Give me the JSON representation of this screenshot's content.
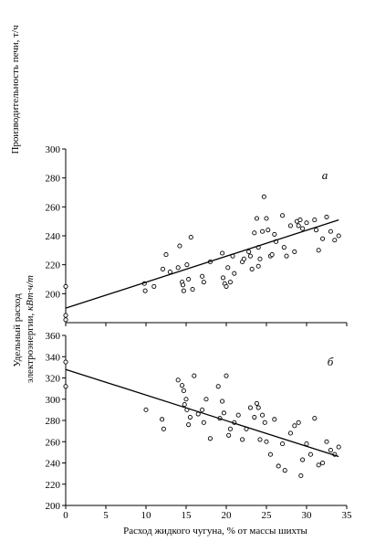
{
  "chart_data": [
    {
      "type": "scatter",
      "panel_label": "а",
      "ylabel": "Производительность печи, т/ч",
      "xlim": [
        0,
        35
      ],
      "ylim": [
        180,
        300
      ],
      "yticks": [
        200,
        220,
        240,
        260,
        280,
        300
      ],
      "trendline": {
        "x": [
          0,
          34
        ],
        "y": [
          190,
          251
        ]
      },
      "series": [
        {
          "x": [
            0,
            0,
            0,
            9.8,
            9.9,
            11,
            12.1,
            12.5,
            13,
            14,
            14.2,
            14.5,
            14.6,
            14.7,
            15.1,
            15.3,
            15.6,
            15.8,
            17,
            17.2,
            18,
            19.5,
            19.6,
            19.8,
            20,
            20.2,
            20.5,
            20.8,
            21,
            22,
            22.2,
            22.8,
            23,
            23.2,
            23.5,
            23.8,
            24,
            24,
            24.2,
            24.5,
            24.7,
            25,
            25.2,
            25.5,
            25.7,
            26,
            26.2,
            27,
            27.2,
            27.5,
            28,
            28.5,
            28.8,
            29,
            29.2,
            29.5,
            30,
            31,
            31.2,
            31.5,
            32,
            32.5,
            33,
            33.5,
            34
          ],
          "y": [
            205,
            185,
            182,
            207,
            202,
            205,
            217,
            227,
            215,
            218,
            233,
            208,
            206,
            202,
            220,
            210,
            239,
            203,
            212,
            208,
            222,
            228,
            211,
            207,
            205,
            218,
            208,
            226,
            214,
            222,
            224,
            229,
            226,
            217,
            242,
            252,
            219,
            232,
            224,
            243,
            267,
            252,
            244,
            226,
            227,
            241,
            236,
            254,
            232,
            226,
            247,
            229,
            250,
            247,
            251,
            245,
            249,
            251,
            244,
            230,
            238,
            253,
            243,
            237,
            240
          ]
        }
      ]
    },
    {
      "type": "scatter",
      "panel_label": "б",
      "ylabel": "Удельный расход электроэнергии, кВт·ч/т",
      "xlabel": "Расход жидкого чугуна, % от массы шихты",
      "xlim": [
        0,
        35
      ],
      "ylim": [
        200,
        360
      ],
      "xticks": [
        0,
        5,
        10,
        15,
        20,
        25,
        30,
        35
      ],
      "yticks": [
        200,
        220,
        240,
        260,
        280,
        300,
        320,
        340,
        360
      ],
      "trendline": {
        "x": [
          0,
          34
        ],
        "y": [
          328,
          246
        ]
      },
      "series": [
        {
          "x": [
            0,
            0,
            10,
            12,
            12.2,
            14,
            14.5,
            14.7,
            14.8,
            15,
            15.1,
            15.3,
            15.5,
            16,
            16.5,
            17,
            17.2,
            17.5,
            18,
            19,
            19.2,
            19.5,
            19.7,
            20,
            20.3,
            20.5,
            21,
            21.5,
            22,
            22.5,
            23,
            23.5,
            23.8,
            24,
            24.2,
            24.5,
            24.8,
            25,
            25.5,
            26,
            26.5,
            27,
            27.3,
            28,
            28.5,
            29,
            29.3,
            29.5,
            30,
            30.5,
            31,
            31.5,
            32,
            32.5,
            33,
            33.5,
            34
          ],
          "y": [
            335,
            312,
            290,
            281,
            272,
            318,
            313,
            308,
            295,
            300,
            290,
            276,
            283,
            322,
            286,
            290,
            278,
            300,
            263,
            312,
            282,
            298,
            287,
            322,
            266,
            272,
            278,
            285,
            262,
            272,
            292,
            283,
            296,
            292,
            262,
            285,
            278,
            260,
            248,
            281,
            237,
            258,
            233,
            268,
            275,
            278,
            228,
            243,
            258,
            248,
            282,
            238,
            240,
            260,
            252,
            248,
            255
          ]
        }
      ]
    }
  ]
}
